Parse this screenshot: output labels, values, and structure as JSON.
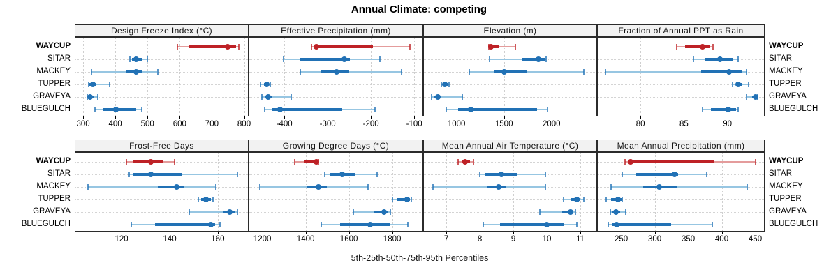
{
  "title": "Annual Climate: competing",
  "caption": "5th-25th-50th-75th-95th Percentiles",
  "sites": [
    "WAYCUP",
    "SITAR",
    "MACKEY",
    "TUPPER",
    "GRAVEYA",
    "BLUEGULCH"
  ],
  "highlight_site": "WAYCUP",
  "colors": {
    "highlight_dark": "#be2126",
    "highlight_light": "#e49c9c",
    "normal_dark": "#2171b5",
    "normal_light": "#97c6e2",
    "strip_bg": "#f2f2f2",
    "panel_border": "#2b2b2b",
    "grid": "#d0d0d0"
  },
  "chart_data": {
    "type": "dotplot-percentile-trellis",
    "percentiles": [
      "5th",
      "25th",
      "50th",
      "75th",
      "95th"
    ],
    "grid": "dotted",
    "layout": "2x4",
    "panels": [
      {
        "title": "Design Freeze Index (°C)",
        "row": 0,
        "col": 0,
        "xlim": [
          276,
          812
        ],
        "ticks": [
          300,
          400,
          500,
          600,
          700,
          800
        ],
        "series": [
          {
            "name": "WAYCUP",
            "values": [
              592,
              628,
              750,
              775,
              783
            ]
          },
          {
            "name": "SITAR",
            "values": [
              445,
              451,
              465,
              482,
              499
            ]
          },
          {
            "name": "MACKEY",
            "values": [
              325,
              434,
              464,
              484,
              531
            ]
          },
          {
            "name": "TUPPER",
            "values": [
              317,
              320,
              330,
              341,
              382
            ]
          },
          {
            "name": "GRAVEYA",
            "values": [
              312,
              315,
              321,
              334,
              346
            ]
          },
          {
            "name": "BLUEGULCH",
            "values": [
              337,
              360,
              402,
              466,
              482
            ]
          }
        ]
      },
      {
        "title": "Effective Precipitation (mm)",
        "row": 0,
        "col": 1,
        "xlim": [
          -481,
          -81
        ],
        "ticks": [
          -400,
          -300,
          -200,
          -100
        ],
        "series": [
          {
            "name": "WAYCUP",
            "values": [
              -337,
              -330,
              -327,
              -195,
              -110
            ]
          },
          {
            "name": "SITAR",
            "values": [
              -402,
              -363,
              -261,
              -249,
              -180
            ]
          },
          {
            "name": "MACKEY",
            "values": [
              -364,
              -317,
              -280,
              -250,
              -129
            ]
          },
          {
            "name": "TUPPER",
            "values": [
              -455,
              -447,
              -441,
              -437,
              -433
            ]
          },
          {
            "name": "GRAVEYA",
            "values": [
              -452,
              -444,
              -438,
              -430,
              -384
            ]
          },
          {
            "name": "BLUEGULCH",
            "values": [
              -446,
              -430,
              -410,
              -266,
              -191
            ]
          }
        ]
      },
      {
        "title": "Elevation (m)",
        "row": 0,
        "col": 2,
        "xlim": [
          658,
          2471
        ],
        "ticks": [
          1000,
          1500,
          2000
        ],
        "series": [
          {
            "name": "WAYCUP",
            "values": [
              1340,
              1350,
              1362,
              1450,
              1620
            ]
          },
          {
            "name": "SITAR",
            "values": [
              1345,
              1695,
              1865,
              1925,
              1945
            ]
          },
          {
            "name": "MACKEY",
            "values": [
              1135,
              1400,
              1505,
              1745,
              2335
            ]
          },
          {
            "name": "TUPPER",
            "values": [
              840,
              858,
              880,
              908,
              925
            ]
          },
          {
            "name": "GRAVEYA",
            "values": [
              735,
              760,
              805,
              845,
              1065
            ]
          },
          {
            "name": "BLUEGULCH",
            "values": [
              895,
              1015,
              1150,
              1850,
              1960
            ]
          }
        ]
      },
      {
        "title": "Fraction of Annual PPT as Rain",
        "row": 0,
        "col": 3,
        "xlim": [
          75.1,
          94.2
        ],
        "ticks": [
          80,
          85,
          90
        ],
        "series": [
          {
            "name": "WAYCUP",
            "values": [
              84.2,
              85.1,
              87.1,
              88.0,
              88.3
            ]
          },
          {
            "name": "SITAR",
            "values": [
              86.1,
              87.4,
              89.1,
              90.6,
              91.2
            ]
          },
          {
            "name": "MACKEY",
            "values": [
              76.0,
              87.0,
              90.2,
              91.7,
              92.2
            ]
          },
          {
            "name": "TUPPER",
            "values": [
              90.6,
              91.0,
              91.2,
              91.6,
              92.4
            ]
          },
          {
            "name": "GRAVEYA",
            "values": [
              92.2,
              92.8,
              93.2,
              93.4,
              93.5
            ]
          },
          {
            "name": "BLUEGULCH",
            "values": [
              87.1,
              88.1,
              90.1,
              91.0,
              91.2
            ]
          }
        ]
      },
      {
        "title": "Frost-Free Days",
        "row": 1,
        "col": 0,
        "xlim": [
          100.8,
          172.5
        ],
        "ticks": [
          120,
          140,
          160
        ],
        "series": [
          {
            "name": "WAYCUP",
            "values": [
              122,
              125,
              132,
              137,
              142
            ]
          },
          {
            "name": "SITAR",
            "values": [
              123,
              125,
              132,
              145,
              168
            ]
          },
          {
            "name": "MACKEY",
            "values": [
              106,
              135,
              143,
              146,
              159
            ]
          },
          {
            "name": "TUPPER",
            "values": [
              152,
              153,
              155,
              157,
              158
            ]
          },
          {
            "name": "GRAVEYA",
            "values": [
              148,
              162,
              165,
              167,
              168
            ]
          },
          {
            "name": "BLUEGULCH",
            "values": [
              124,
              134,
              157,
              159,
              161
            ]
          }
        ]
      },
      {
        "title": "Growing Degree Days (°C)",
        "row": 1,
        "col": 1,
        "xlim": [
          1140,
          1940
        ],
        "ticks": [
          1200,
          1400,
          1600,
          1800
        ],
        "series": [
          {
            "name": "WAYCUP",
            "values": [
              1350,
              1395,
              1448,
              1455,
              1460
            ]
          },
          {
            "name": "SITAR",
            "values": [
              1488,
              1510,
              1568,
              1627,
              1731
            ]
          },
          {
            "name": "MACKEY",
            "values": [
              1187,
              1406,
              1459,
              1497,
              1689
            ]
          },
          {
            "name": "TUPPER",
            "values": [
              1802,
              1820,
              1870,
              1882,
              1888
            ]
          },
          {
            "name": "GRAVEYA",
            "values": [
              1622,
              1718,
              1764,
              1782,
              1790
            ]
          },
          {
            "name": "BLUEGULCH",
            "values": [
              1472,
              1558,
              1697,
              1793,
              1871
            ]
          }
        ]
      },
      {
        "title": "Mean Annual Air Temperature (°C)",
        "row": 1,
        "col": 2,
        "xlim": [
          6.33,
          11.48
        ],
        "ticks": [
          7,
          8,
          9,
          10,
          11
        ],
        "series": [
          {
            "name": "WAYCUP",
            "values": [
              7.35,
              7.45,
              7.55,
              7.7,
              7.8
            ]
          },
          {
            "name": "SITAR",
            "values": [
              8.0,
              8.15,
              8.65,
              9.1,
              9.95
            ]
          },
          {
            "name": "MACKEY",
            "values": [
              6.6,
              8.2,
              8.55,
              8.8,
              9.95
            ]
          },
          {
            "name": "TUPPER",
            "values": [
              10.5,
              10.7,
              10.9,
              11.0,
              11.1
            ]
          },
          {
            "name": "GRAVEYA",
            "values": [
              9.8,
              10.45,
              10.7,
              10.8,
              10.85
            ]
          },
          {
            "name": "BLUEGULCH",
            "values": [
              8.1,
              8.6,
              10.0,
              10.5,
              10.9
            ]
          }
        ]
      },
      {
        "title": "Mean Annual Precipitation (mm)",
        "row": 1,
        "col": 3,
        "xlim": [
          215,
          463
        ],
        "ticks": [
          250,
          300,
          350,
          400,
          450
        ],
        "series": [
          {
            "name": "WAYCUP",
            "values": [
              256,
              260,
              264,
              388,
              450
            ]
          },
          {
            "name": "SITAR",
            "values": [
              251,
              272,
              330,
              335,
              377
            ]
          },
          {
            "name": "MACKEY",
            "values": [
              235,
              283,
              307,
              334,
              438
            ]
          },
          {
            "name": "TUPPER",
            "values": [
              227,
              235,
              245,
              250,
              251
            ]
          },
          {
            "name": "GRAVEYA",
            "values": [
              234,
              237,
              242,
              248,
              257
            ]
          },
          {
            "name": "BLUEGULCH",
            "values": [
              231,
              236,
              243,
              324,
              386
            ]
          }
        ]
      }
    ]
  }
}
